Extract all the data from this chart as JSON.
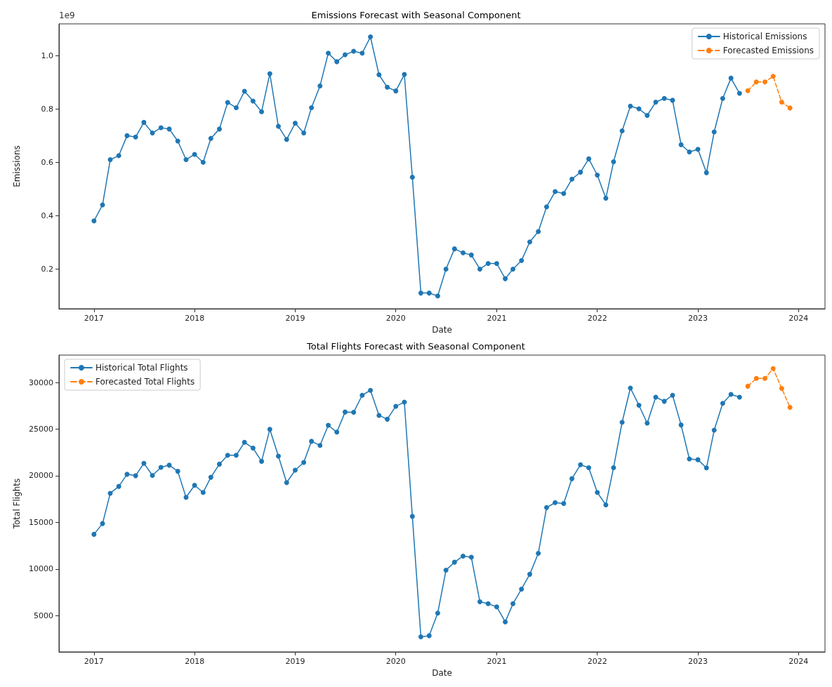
{
  "chart_data": [
    {
      "type": "line",
      "title": "Emissions Forecast with Seasonal Component",
      "xlabel": "Date",
      "ylabel": "Emissions",
      "annotations": [
        "1e9"
      ],
      "legend": "top right",
      "grid": false,
      "marker": "circle",
      "xlim": [
        "2016-08-27",
        "2024-04-06"
      ],
      "xticks": [
        "2017",
        "2018",
        "2019",
        "2020",
        "2021",
        "2022",
        "2023",
        "2024"
      ],
      "ylim": [
        0.05,
        1.12
      ],
      "yticks": [
        0.2,
        0.4,
        0.6,
        0.8,
        {
          "value": 1.0,
          "label": "1.0"
        }
      ],
      "series": [
        {
          "name": "Historical Emissions",
          "color": "#1f77b4",
          "line_style": "solid",
          "x": [
            "2017-01",
            "2017-02",
            "2017-03",
            "2017-04",
            "2017-05",
            "2017-06",
            "2017-07",
            "2017-08",
            "2017-09",
            "2017-10",
            "2017-11",
            "2017-12",
            "2018-01",
            "2018-02",
            "2018-03",
            "2018-04",
            "2018-05",
            "2018-06",
            "2018-07",
            "2018-08",
            "2018-09",
            "2018-10",
            "2018-11",
            "2018-12",
            "2019-01",
            "2019-02",
            "2019-03",
            "2019-04",
            "2019-05",
            "2019-06",
            "2019-07",
            "2019-08",
            "2019-09",
            "2019-10",
            "2019-11",
            "2019-12",
            "2020-01",
            "2020-02",
            "2020-03",
            "2020-04",
            "2020-05",
            "2020-06",
            "2020-07",
            "2020-08",
            "2020-09",
            "2020-10",
            "2020-11",
            "2020-12",
            "2021-01",
            "2021-02",
            "2021-03",
            "2021-04",
            "2021-05",
            "2021-06",
            "2021-07",
            "2021-08",
            "2021-09",
            "2021-10",
            "2021-11",
            "2021-12",
            "2022-01",
            "2022-02",
            "2022-03",
            "2022-04",
            "2022-05",
            "2022-06",
            "2022-07",
            "2022-08",
            "2022-09",
            "2022-10",
            "2022-11",
            "2022-12",
            "2023-01",
            "2023-02",
            "2023-03",
            "2023-04",
            "2023-05",
            "2023-06"
          ],
          "values": [
            0.38,
            0.44,
            0.61,
            0.625,
            0.7,
            0.695,
            0.75,
            0.71,
            0.73,
            0.725,
            0.68,
            0.61,
            0.63,
            0.6,
            0.69,
            0.725,
            0.825,
            0.805,
            0.867,
            0.83,
            0.79,
            0.933,
            0.735,
            0.686,
            0.747,
            0.71,
            0.805,
            0.887,
            1.01,
            0.978,
            1.004,
            1.017,
            1.01,
            1.071,
            0.929,
            0.882,
            0.868,
            0.93,
            0.544,
            0.109,
            0.109,
            0.098,
            0.199,
            0.275,
            0.26,
            0.252,
            0.199,
            0.22,
            0.22,
            0.163,
            0.199,
            0.231,
            0.301,
            0.34,
            0.433,
            0.49,
            0.483,
            0.537,
            0.563,
            0.613,
            0.552,
            0.465,
            0.602,
            0.718,
            0.811,
            0.801,
            0.776,
            0.826,
            0.84,
            0.833,
            0.666,
            0.639,
            0.649,
            0.561,
            0.714,
            0.84,
            0.916,
            0.859
          ]
        },
        {
          "name": "Forecasted Emissions",
          "color": "#ff7f0e",
          "line_style": "dashed",
          "x": [
            "2023-07",
            "2023-08",
            "2023-09",
            "2023-10",
            "2023-11",
            "2023-12"
          ],
          "values": [
            0.869,
            0.902,
            0.902,
            0.923,
            0.826,
            0.804
          ]
        }
      ]
    },
    {
      "type": "line",
      "title": "Total Flights Forecast with Seasonal Component",
      "xlabel": "Date",
      "ylabel": "Total Flights",
      "legend": "top left",
      "grid": false,
      "marker": "circle",
      "xlim": [
        "2016-08-27",
        "2024-04-06"
      ],
      "xticks": [
        "2017",
        "2018",
        "2019",
        "2020",
        "2021",
        "2022",
        "2023",
        "2024"
      ],
      "ylim": [
        1100,
        32950
      ],
      "yticks": [
        5000,
        10000,
        15000,
        20000,
        25000,
        30000
      ],
      "series": [
        {
          "name": "Historical Total Flights",
          "color": "#1f77b4",
          "line_style": "solid",
          "x": [
            "2017-01",
            "2017-02",
            "2017-03",
            "2017-04",
            "2017-05",
            "2017-06",
            "2017-07",
            "2017-08",
            "2017-09",
            "2017-10",
            "2017-11",
            "2017-12",
            "2018-01",
            "2018-02",
            "2018-03",
            "2018-04",
            "2018-05",
            "2018-06",
            "2018-07",
            "2018-08",
            "2018-09",
            "2018-10",
            "2018-11",
            "2018-12",
            "2019-01",
            "2019-02",
            "2019-03",
            "2019-04",
            "2019-05",
            "2019-06",
            "2019-07",
            "2019-08",
            "2019-09",
            "2019-10",
            "2019-11",
            "2019-12",
            "2020-01",
            "2020-02",
            "2020-03",
            "2020-04",
            "2020-05",
            "2020-06",
            "2020-07",
            "2020-08",
            "2020-09",
            "2020-10",
            "2020-11",
            "2020-12",
            "2021-01",
            "2021-02",
            "2021-03",
            "2021-04",
            "2021-05",
            "2021-06",
            "2021-07",
            "2021-08",
            "2021-09",
            "2021-10",
            "2021-11",
            "2021-12",
            "2022-01",
            "2022-02",
            "2022-03",
            "2022-04",
            "2022-05",
            "2022-06",
            "2022-07",
            "2022-08",
            "2022-09",
            "2022-10",
            "2022-11",
            "2022-12",
            "2023-01",
            "2023-02",
            "2023-03",
            "2023-04",
            "2023-05",
            "2023-06"
          ],
          "values": [
            13720,
            14870,
            18120,
            18860,
            20160,
            20010,
            21340,
            20040,
            20900,
            21140,
            20480,
            17680,
            18980,
            18210,
            19840,
            21250,
            22200,
            22200,
            23590,
            22970,
            21550,
            24980,
            22110,
            19270,
            20600,
            21430,
            23700,
            23260,
            25420,
            24680,
            26840,
            26810,
            28640,
            29170,
            26480,
            26070,
            27460,
            27900,
            15640,
            2720,
            2840,
            5260,
            9870,
            10730,
            11380,
            11260,
            6480,
            6270,
            5940,
            4320,
            6270,
            7840,
            9430,
            11680,
            16590,
            17120,
            17030,
            19690,
            21190,
            20870,
            18210,
            16880,
            20870,
            25740,
            29410,
            27570,
            25650,
            28430,
            27990,
            28640,
            25450,
            21810,
            21720,
            20840,
            24890,
            27780,
            28730,
            28430
          ]
        },
        {
          "name": "Forecasted Total Flights",
          "color": "#ff7f0e",
          "line_style": "dashed",
          "x": [
            "2023-07",
            "2023-08",
            "2023-09",
            "2023-10",
            "2023-11",
            "2023-12"
          ],
          "values": [
            29610,
            30440,
            30440,
            31500,
            29380,
            27340
          ]
        }
      ]
    }
  ]
}
